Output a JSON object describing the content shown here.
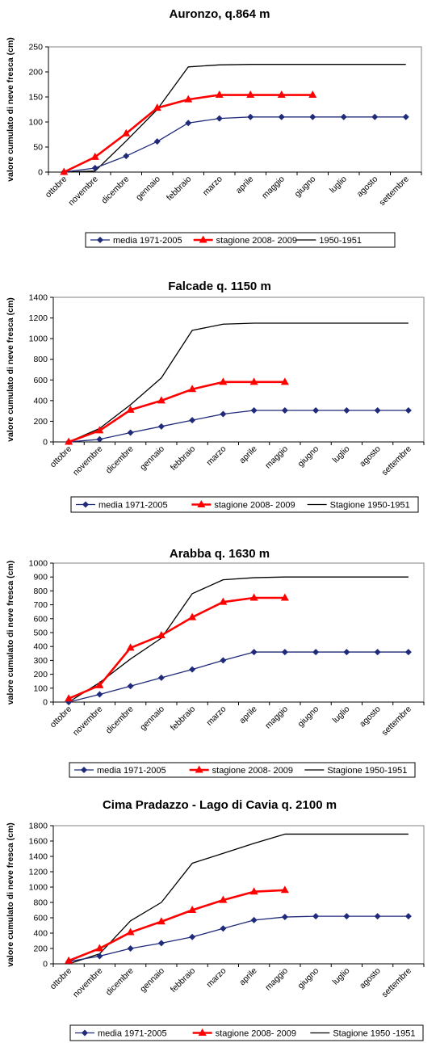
{
  "chart_data": [
    {
      "type": "line",
      "title": "Auronzo, q.864 m",
      "ylabel": "valore cumulato di neve fresca (cm)",
      "xlabel": "",
      "ylim": [
        0,
        250
      ],
      "yticks": [
        0,
        50,
        100,
        150,
        200,
        250
      ],
      "categories": [
        "ottobre",
        "novembre",
        "dicembre",
        "gennaio",
        "febbraio",
        "marzo",
        "aprile",
        "maggio",
        "giugno",
        "luglio",
        "agosto",
        "settembre"
      ],
      "grid": false,
      "series": [
        {
          "name": "media  1971-2005",
          "color": "#1f2a7a",
          "marker": "diamond",
          "values": [
            0,
            8,
            32,
            61,
            98,
            107,
            110,
            110,
            110,
            110,
            110,
            110
          ]
        },
        {
          "name": "stagione 2008- 2009",
          "color": "#ff0000",
          "marker": "triangle",
          "values": [
            0,
            30,
            77,
            128,
            145,
            154,
            154,
            154,
            154,
            null,
            null,
            null
          ]
        },
        {
          "name": "1950-1951",
          "color": "#000000",
          "marker": "none",
          "values": [
            0,
            2,
            62,
            125,
            210,
            214,
            215,
            215,
            215,
            215,
            215,
            215
          ]
        }
      ]
    },
    {
      "type": "line",
      "title": "Falcade q. 1150 m",
      "ylabel": "valore cumulato di neve fresca (cm)",
      "xlabel": "",
      "ylim": [
        0,
        1400
      ],
      "yticks": [
        0,
        200,
        400,
        600,
        800,
        1000,
        1200,
        1400
      ],
      "categories": [
        "ottobre",
        "novembre",
        "dicembre",
        "gennaio",
        "febbraio",
        "marzo",
        "aprile",
        "maggio",
        "giugno",
        "luglio",
        "agosto",
        "settembre"
      ],
      "grid": false,
      "series": [
        {
          "name": "media  1971-2005",
          "color": "#1f2a7a",
          "marker": "diamond",
          "values": [
            0,
            25,
            90,
            150,
            210,
            270,
            305,
            305,
            305,
            305,
            305,
            305
          ]
        },
        {
          "name": "stagione 2008- 2009",
          "color": "#ff0000",
          "marker": "triangle",
          "values": [
            0,
            110,
            310,
            400,
            510,
            580,
            580,
            580,
            null,
            null,
            null,
            null
          ]
        },
        {
          "name": "Stagione 1950-1951",
          "color": "#000000",
          "marker": "none",
          "values": [
            0,
            130,
            360,
            620,
            1080,
            1140,
            1150,
            1150,
            1150,
            1150,
            1150,
            1150
          ]
        }
      ]
    },
    {
      "type": "line",
      "title": "Arabba q. 1630 m",
      "ylabel": "valore cumulato di neve fresca (cm)",
      "xlabel": "",
      "ylim": [
        0,
        1000
      ],
      "yticks": [
        0,
        100,
        200,
        300,
        400,
        500,
        600,
        700,
        800,
        900,
        1000
      ],
      "categories": [
        "ottobre",
        "novembre",
        "dicembre",
        "gennaio",
        "febbraio",
        "marzo",
        "aprile",
        "maggio",
        "giugno",
        "luglio",
        "agosto",
        "settembre"
      ],
      "grid": false,
      "series": [
        {
          "name": "media  1971-2005",
          "color": "#1f2a7a",
          "marker": "diamond",
          "values": [
            0,
            55,
            115,
            175,
            235,
            300,
            360,
            360,
            360,
            360,
            360,
            360
          ]
        },
        {
          "name": "stagione 2008- 2009",
          "color": "#ff0000",
          "marker": "triangle",
          "values": [
            25,
            120,
            390,
            480,
            610,
            720,
            750,
            750,
            null,
            null,
            null,
            null
          ]
        },
        {
          "name": "Stagione 1950-1951",
          "color": "#000000",
          "marker": "none",
          "values": [
            0,
            140,
            310,
            460,
            780,
            880,
            895,
            900,
            900,
            900,
            900,
            900
          ]
        }
      ]
    },
    {
      "type": "line",
      "title": "Cima Pradazzo - Lago di Cavia q. 2100 m",
      "ylabel": "valore cumulato di neve fresca (cm)",
      "xlabel": "",
      "ylim": [
        0,
        1800
      ],
      "yticks": [
        0,
        200,
        400,
        600,
        800,
        1000,
        1200,
        1400,
        1600,
        1800
      ],
      "categories": [
        "ottobre",
        "novembre",
        "dicembre",
        "gennaio",
        "febbraio",
        "marzo",
        "aprile",
        "maggio",
        "giugno",
        "luglio",
        "agosto",
        "settembre"
      ],
      "grid": false,
      "series": [
        {
          "name": "media  1971-2005",
          "color": "#1f2a7a",
          "marker": "diamond",
          "values": [
            30,
            100,
            200,
            270,
            350,
            460,
            570,
            610,
            620,
            620,
            620,
            620
          ]
        },
        {
          "name": "stagione 2008- 2009",
          "color": "#ff0000",
          "marker": "triangle",
          "values": [
            40,
            200,
            410,
            550,
            700,
            830,
            940,
            960,
            null,
            null,
            null,
            null
          ]
        },
        {
          "name": "Stagione 1950 -1951",
          "color": "#000000",
          "marker": "none",
          "values": [
            0,
            130,
            560,
            800,
            1310,
            1440,
            1570,
            1690,
            1690,
            1690,
            1690,
            1690
          ]
        }
      ]
    }
  ]
}
